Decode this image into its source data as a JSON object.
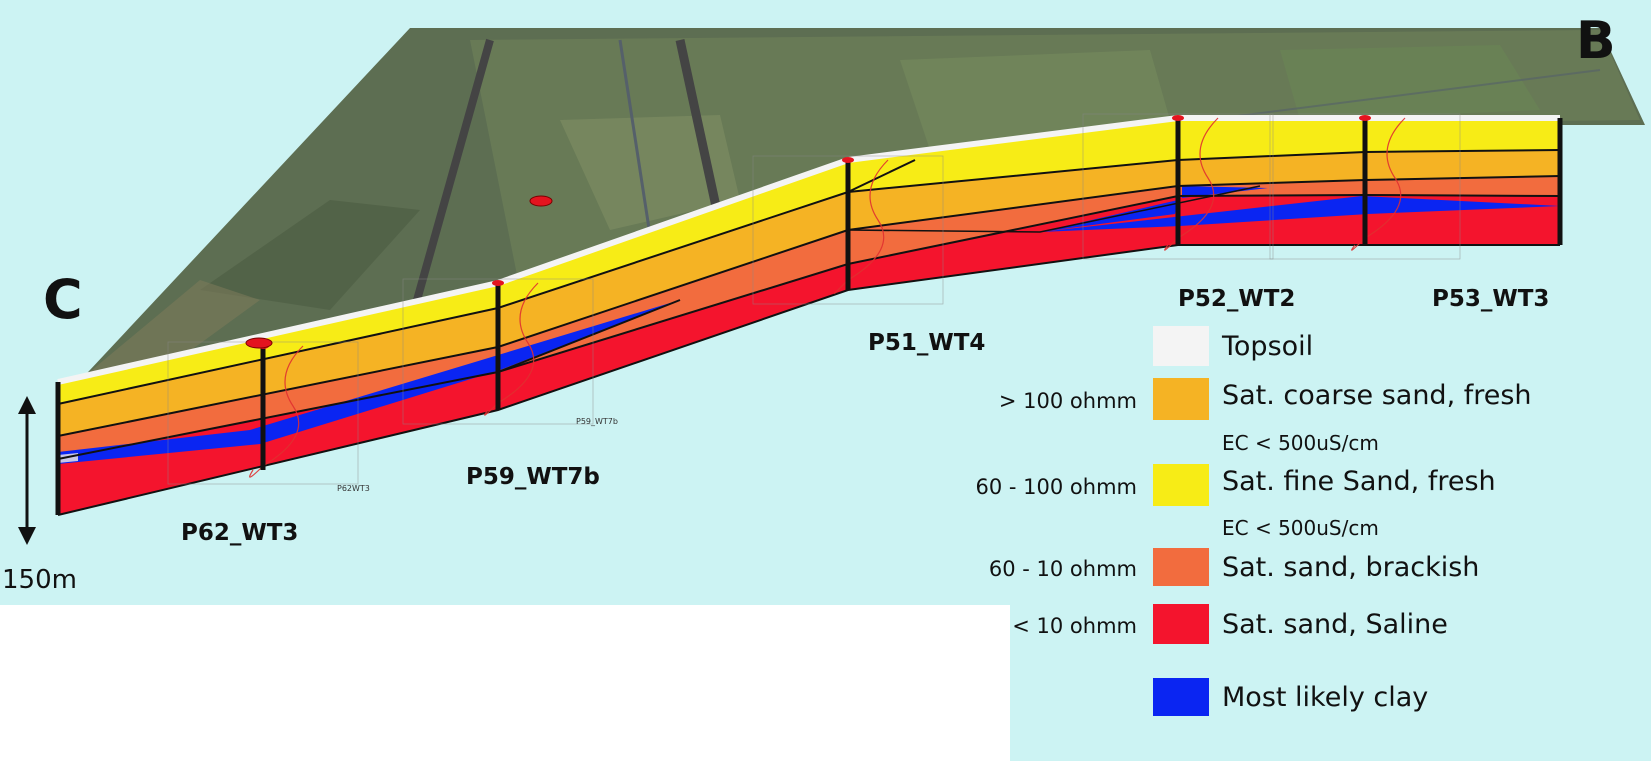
{
  "corner_labels": {
    "left": "C",
    "right": "B"
  },
  "scale_bar": {
    "label": "150m"
  },
  "wells": [
    {
      "id": "P62_WT3",
      "inset_label": "P62WT3"
    },
    {
      "id": "P59_WT7b",
      "inset_label": "P59_WT7b"
    },
    {
      "id": "P51_WT4",
      "inset_label": ""
    },
    {
      "id": "P52_WT2",
      "inset_label": ""
    },
    {
      "id": "P53_WT3",
      "inset_label": ""
    }
  ],
  "legend": {
    "items": [
      {
        "key": "topsoil",
        "range": "",
        "label": "Topsoil",
        "sub": "",
        "color": "#f4f4f4"
      },
      {
        "key": "coarse",
        "range": "> 100 ohmm",
        "label": "Sat. coarse sand, fresh",
        "sub": "EC < 500uS/cm",
        "color": "#f5b324"
      },
      {
        "key": "fine",
        "range": "60 - 100 ohmm",
        "label": "Sat. fine Sand, fresh",
        "sub": "EC < 500uS/cm",
        "color": "#f7ec16"
      },
      {
        "key": "brackish",
        "range": "60 - 10 ohmm",
        "label": "Sat. sand, brackish",
        "sub": "",
        "color": "#f26c3e"
      },
      {
        "key": "saline",
        "range": "< 10 ohmm",
        "label": "Sat. sand, Saline",
        "sub": "",
        "color": "#f4142d"
      },
      {
        "key": "clay",
        "range": "",
        "label": "Most likely clay",
        "sub": "",
        "color": "#0a25f2"
      }
    ]
  },
  "colors": {
    "background": "#ccf3f3",
    "terrain": "#5d6e52",
    "field_light": "#7c8c62",
    "road": "#444444"
  }
}
